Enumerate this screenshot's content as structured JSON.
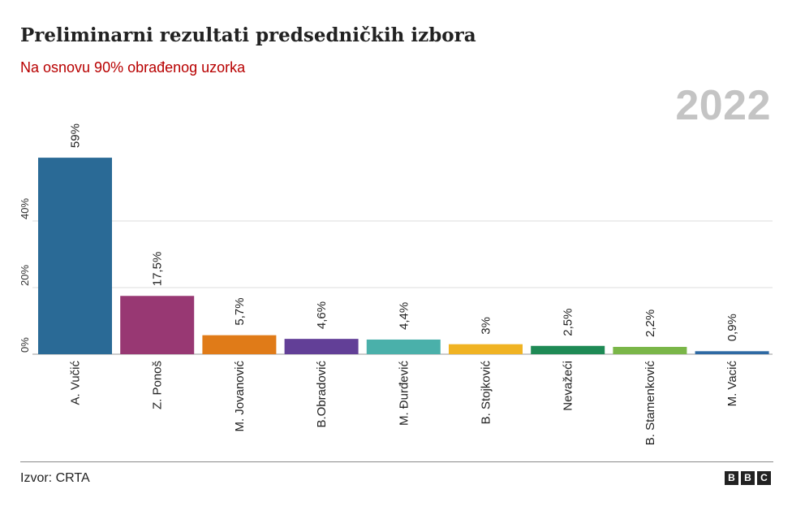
{
  "header": {
    "title": "Preliminarni rezultati predsedničkih izbora",
    "subtitle": "Na osnovu 90% obrađenog uzorka",
    "year": "2022"
  },
  "footer": {
    "source": "Izvor: CRTA",
    "logo": [
      "B",
      "B",
      "C"
    ]
  },
  "chart_data": {
    "type": "bar",
    "title": "Preliminarni rezultati predsedničkih izbora",
    "subtitle": "Na osnovu 90% obrađenog uzorka",
    "xlabel": "",
    "ylabel": "",
    "ylim": [
      0,
      60
    ],
    "yticks": [
      0,
      20,
      40
    ],
    "ytick_labels": [
      "0%",
      "20%",
      "40%"
    ],
    "grid": true,
    "categories": [
      "A. Vučić",
      "Z. Ponoš",
      "M. Jovanović",
      "B.Obradović",
      "M. Đurđević",
      "B. Stojković",
      "Nevažeći",
      "B. Stamenković",
      "M. Vacić"
    ],
    "values": [
      59,
      17.5,
      5.7,
      4.6,
      4.4,
      3,
      2.5,
      2.2,
      0.9
    ],
    "value_labels": [
      "59%",
      "17,5%",
      "5,7%",
      "4,6%",
      "4,4%",
      "3%",
      "2,5%",
      "2,2%",
      "0,9%"
    ],
    "colors": [
      "#2a6a96",
      "#983873",
      "#e07b18",
      "#623f97",
      "#4ab0aa",
      "#f0b323",
      "#1e8a55",
      "#7ab648",
      "#2e69a3"
    ]
  }
}
